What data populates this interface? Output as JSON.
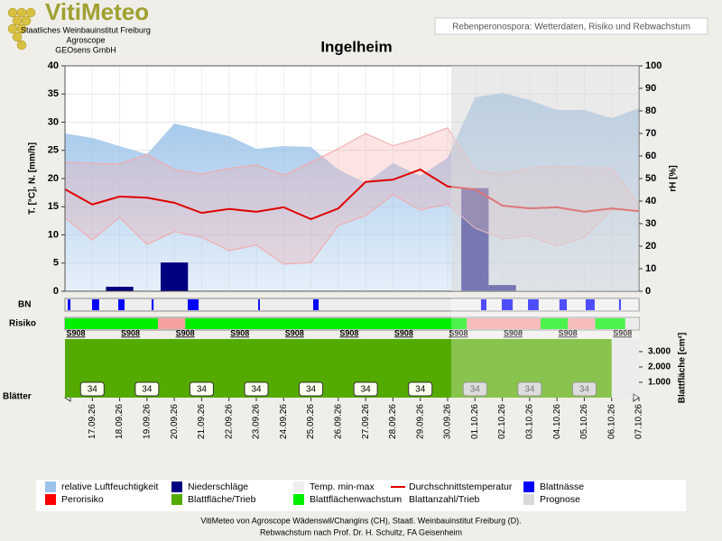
{
  "header": {
    "logo": "VitiMeteo",
    "lines": [
      "Staatliches Weinbauinstitut Freiburg",
      "Agroscope",
      "GEOsens GmbH"
    ],
    "subtitle": "Rebenperonospora: Wetterdaten, Risiko und Rebwachstum"
  },
  "chart_data": {
    "type": "combo",
    "title": "Ingelheim",
    "categories": [
      null,
      "17.09.26",
      "18.09.26",
      "19.09.26",
      "20.09.26",
      "21.09.26",
      "22.09.26",
      "23.09.26",
      "24.09.26",
      "25.09.26",
      "26.09.26",
      "27.09.26",
      "28.09.26",
      "29.09.26",
      "30.09.26",
      "01.10.26",
      "02.10.26",
      "03.10.26",
      "04.10.26",
      "05.10.26",
      "06.10.26",
      "07.10.26"
    ],
    "ylim": [
      0,
      40
    ],
    "yticks": [
      0,
      5,
      10,
      15,
      20,
      25,
      30,
      35,
      40
    ],
    "ylabel": "T. [°C], N. [mm/h]",
    "y2lim": [
      0,
      100
    ],
    "y2ticks": [
      0,
      10,
      20,
      30,
      40,
      50,
      60,
      70,
      80,
      90,
      100
    ],
    "y2label": "rH [%]",
    "grid": true,
    "series": [
      {
        "name": "relative Luftfeuchtigkeit",
        "color": "#9cc3ea",
        "axis": "y2",
        "kind": "area",
        "values": [
          70,
          68,
          64.4,
          60.8,
          74.4,
          71.6,
          68.8,
          63.2,
          64.4,
          64,
          54,
          48,
          56.8,
          51.2,
          59.2,
          86,
          88,
          84.8,
          80.4,
          80.4,
          76.8,
          81.2
        ]
      },
      {
        "name": "Niederschläge",
        "color": "#000080",
        "kind": "bar",
        "values": [
          0,
          0,
          0.8,
          0,
          5.1,
          0,
          0,
          0,
          0,
          0,
          0,
          0,
          0,
          0,
          0,
          18.3,
          1.1,
          0,
          0,
          0,
          0,
          0
        ]
      },
      {
        "name": "Temp. min-max",
        "color": "#f4a6a6",
        "kind": "band",
        "values": [
          13,
          9.1,
          13.1,
          8.3,
          10.6,
          9.6,
          7.2,
          8.2,
          4.8,
          5.1,
          11.7,
          13.4,
          17.1,
          14.4,
          15.5,
          11.2,
          9.3,
          9.8,
          8,
          9.6,
          14.4,
          14.4
        ],
        "high": [
          22.9,
          22.7,
          22.6,
          24.3,
          21.6,
          20.8,
          21.8,
          22.4,
          20.6,
          22.9,
          25.3,
          28,
          25.8,
          27.2,
          29,
          21.4,
          20.8,
          21.9,
          22.1,
          21.9,
          21.9,
          15.5
        ]
      },
      {
        "name": "Durchschnittstemperatur",
        "color": "#e00000",
        "kind": "line",
        "values": [
          18.1,
          15.4,
          16.8,
          16.6,
          15.7,
          13.9,
          14.6,
          14.1,
          14.9,
          12.8,
          14.7,
          19.4,
          19.8,
          21.6,
          18.6,
          18.1,
          15.2,
          14.7,
          14.9,
          14.1,
          14.7,
          14.2
        ]
      }
    ],
    "bn": {
      "label": "BN",
      "name": "Blattnässe",
      "color": "#0000ff",
      "intervals": [
        [
          0.1,
          0.2
        ],
        [
          0.99,
          1.25
        ],
        [
          1.95,
          2.18
        ],
        [
          3.17,
          3.24
        ],
        [
          4.49,
          4.89
        ],
        [
          7.07,
          7.13
        ],
        [
          9.08,
          9.28
        ],
        [
          15.22,
          15.42
        ],
        [
          15.98,
          16.38
        ],
        [
          16.94,
          17.33
        ],
        [
          18.09,
          18.36
        ],
        [
          19.05,
          19.38
        ],
        [
          20.27,
          20.34
        ]
      ]
    },
    "risk": {
      "label": "Risiko",
      "name": "Perorisiko",
      "color": "#ff0000",
      "colors": {
        "low": "#00ee00",
        "high": "#f4a0a0",
        "none": "#e4e4e4"
      },
      "segments": [
        {
          "from": 0,
          "to": 3.4,
          "level": "low"
        },
        {
          "from": 3.4,
          "to": 4.4,
          "level": "high"
        },
        {
          "from": 4.4,
          "to": 14.7,
          "level": "low"
        },
        {
          "from": 14.7,
          "to": 17.4,
          "level": "high"
        },
        {
          "from": 17.4,
          "to": 18.4,
          "level": "low"
        },
        {
          "from": 18.4,
          "to": 19.4,
          "level": "high"
        },
        {
          "from": 19.4,
          "to": 20.5,
          "level": "low"
        },
        {
          "from": 20.5,
          "to": 21,
          "level": "none"
        }
      ],
      "variety_labels": [
        "S908",
        "S908",
        "S908",
        "S908",
        "S908",
        "S908",
        "S908",
        "S908",
        "S908",
        "S908",
        "S908"
      ]
    },
    "leaf": {
      "label": "Blätter",
      "ylabel": "Blattfläche [cm²]",
      "ylim": [
        0,
        3820
      ],
      "yticks": [
        {
          "value": 1000,
          "label": "1.000"
        },
        {
          "value": 2000,
          "label": "2.000"
        },
        {
          "value": 3000,
          "label": "3.000"
        }
      ],
      "series": [
        {
          "name": "Blattfläche/Trieb",
          "color": "#55aa00",
          "values": [
            3820,
            3820,
            3820,
            3820,
            3820,
            3820,
            3820,
            3820,
            3820,
            3820,
            3820,
            3820,
            3820,
            3820,
            3820,
            3820,
            3820,
            3820,
            3820,
            3820,
            3820,
            null
          ]
        },
        {
          "name": "Blattanzahl/Trieb",
          "color": "#333333",
          "values": [
            null,
            34,
            null,
            34,
            null,
            34,
            null,
            34,
            null,
            34,
            null,
            34,
            null,
            34,
            null,
            34,
            null,
            34,
            null,
            34,
            null,
            null
          ]
        }
      ],
      "growth": {
        "name": "Blattflächenwachstum",
        "color": "#00ee00"
      }
    },
    "prognose": {
      "name": "Prognose",
      "color": "#d9d9d9",
      "from": "30.09.26"
    }
  },
  "footer": [
    "VitiMeteo von Agroscope Wädenswil/Changins (CH), Staatl. Weinbauinstitut Freiburg (D).",
    "Rebwachstum nach Prof. Dr. H. Schultz, FA Geisenheim"
  ]
}
